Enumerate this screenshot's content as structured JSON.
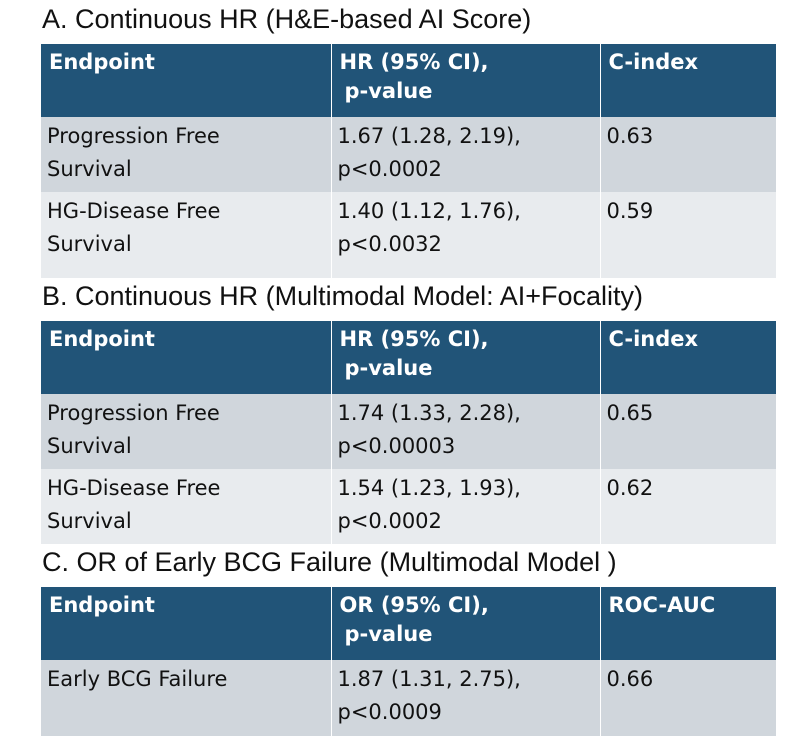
{
  "sections": [
    {
      "title": "A. Continuous HR (H&E-based AI Score)",
      "headers": [
        "Endpoint",
        "HR (95% CI),",
        "p-value",
        "C-index"
      ],
      "rows": [
        {
          "endpoint_1": "Progression Free",
          "endpoint_2": "Survival",
          "ci": "1.67 (1.28, 2.19),",
          "p": "p<0.0002",
          "metric": "0.63"
        },
        {
          "endpoint_1": "HG-Disease Free",
          "endpoint_2": "Survival",
          "ci": "1.40 (1.12, 1.76),",
          "p": "p<0.0032",
          "metric": "0.59"
        }
      ]
    },
    {
      "title": "B. Continuous HR (Multimodal Model: AI+Focality)",
      "headers": [
        "Endpoint",
        "HR (95% CI),",
        "p-value",
        "C-index"
      ],
      "rows": [
        {
          "endpoint_1": "Progression Free",
          "endpoint_2": "Survival",
          "ci": "1.74 (1.33, 2.28),",
          "p": "p<0.00003",
          "metric": "0.65"
        },
        {
          "endpoint_1": "HG-Disease Free",
          "endpoint_2": "Survival",
          "ci": "1.54 (1.23, 1.93),",
          "p": "p<0.0002",
          "metric": "0.62"
        }
      ]
    },
    {
      "title": "C. OR of Early BCG Failure (Multimodal Model )",
      "headers": [
        "Endpoint",
        "OR (95% CI),",
        "p-value",
        "ROC-AUC"
      ],
      "rows": [
        {
          "endpoint_1": "Early BCG Failure",
          "endpoint_2": "",
          "ci": "1.87 (1.31, 2.75),",
          "p": "p<0.0009",
          "metric": "0.66"
        }
      ]
    }
  ]
}
